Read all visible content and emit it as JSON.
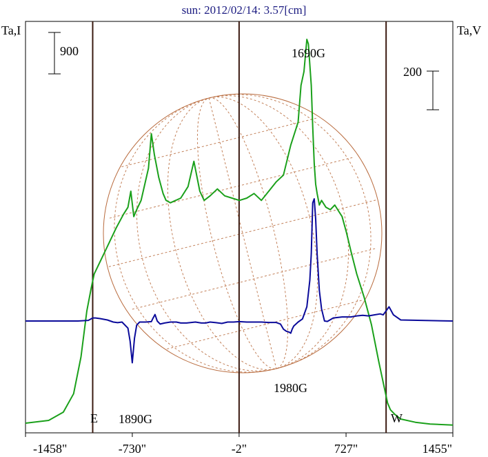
{
  "chart_data": {
    "type": "line",
    "title": "sun: 2012/02/14: 3.57[cm]",
    "left_axis_label": "Ta,I",
    "right_axis_label": "Ta,V",
    "x_unit": "arcsec",
    "xlim": [
      -1458,
      1455
    ],
    "x_tick_labels": [
      "-1458\"",
      "-730\"",
      "-2\"",
      "727\"",
      "1455\""
    ],
    "x_ticks": [
      -1458,
      -730,
      -2,
      727,
      1455
    ],
    "vertical_lines": [
      -1000,
      -2,
      1000
    ],
    "limb_labels": {
      "east": "E",
      "west": "W"
    },
    "scale_bars": [
      {
        "side": "left",
        "label": "900",
        "value": 900
      },
      {
        "side": "right",
        "label": "200",
        "value": 200
      }
    ],
    "annotations": [
      {
        "text": "1690G",
        "x": 510
      },
      {
        "text": "1890G",
        "x": -730
      },
      {
        "text": "1980G",
        "x": 380
      }
    ],
    "series": [
      {
        "name": "Ta,I",
        "color": "#1aa01a",
        "axis": "left",
        "x": [
          -1458,
          -1300,
          -1200,
          -1130,
          -1080,
          -1040,
          -1010,
          -990,
          -960,
          -900,
          -840,
          -790,
          -760,
          -740,
          -720,
          -700,
          -670,
          -620,
          -600,
          -580,
          -550,
          -520,
          -500,
          -470,
          -400,
          -350,
          -310,
          -270,
          -240,
          -200,
          -150,
          -100,
          -50,
          0,
          50,
          100,
          150,
          200,
          250,
          300,
          350,
          400,
          420,
          440,
          460,
          470,
          490,
          500,
          510,
          520,
          530,
          545,
          560,
          590,
          620,
          650,
          680,
          700,
          730,
          760,
          800,
          850,
          900,
          950,
          990,
          1010,
          1030,
          1060,
          1100,
          1200,
          1300,
          1455
        ],
        "y": [
          60,
          120,
          300,
          700,
          1500,
          2500,
          3000,
          3300,
          3500,
          3900,
          4300,
          4600,
          4750,
          5100,
          4550,
          4700,
          4900,
          5600,
          6350,
          5900,
          5400,
          5050,
          4900,
          4850,
          4950,
          5200,
          5750,
          5100,
          4900,
          5000,
          5150,
          5000,
          4950,
          4900,
          4950,
          5050,
          4900,
          5100,
          5300,
          5450,
          6100,
          6600,
          7400,
          7700,
          8400,
          8300,
          7400,
          6500,
          5700,
          5250,
          5050,
          4800,
          4900,
          4750,
          4700,
          4800,
          4650,
          4550,
          4200,
          3800,
          3300,
          2800,
          2200,
          1400,
          800,
          500,
          350,
          250,
          150,
          80,
          40,
          20
        ]
      },
      {
        "name": "Ta,V",
        "color": "#0a0a9a",
        "axis": "right",
        "x": [
          -1458,
          -1100,
          -1030,
          -1000,
          -980,
          -950,
          -900,
          -860,
          -830,
          -800,
          -760,
          -745,
          -730,
          -715,
          -700,
          -680,
          -640,
          -600,
          -590,
          -575,
          -560,
          -540,
          -510,
          -470,
          -430,
          -400,
          -360,
          -300,
          -260,
          -230,
          -200,
          -160,
          -120,
          -80,
          -40,
          0,
          50,
          100,
          150,
          200,
          250,
          280,
          300,
          320,
          340,
          350,
          360,
          370,
          400,
          430,
          460,
          480,
          490,
          500,
          510,
          520,
          530,
          545,
          560,
          580,
          600,
          640,
          700,
          760,
          800,
          840,
          880,
          920,
          960,
          980,
          1000,
          1020,
          1050,
          1100,
          1455
        ],
        "y": [
          0,
          0,
          3,
          15,
          15,
          12,
          5,
          -5,
          -8,
          -5,
          -35,
          -100,
          -205,
          -85,
          -20,
          -5,
          -5,
          -3,
          12,
          32,
          0,
          -15,
          -10,
          -5,
          -5,
          -10,
          -10,
          -5,
          -10,
          -10,
          -5,
          -8,
          -12,
          -5,
          -5,
          -3,
          -5,
          -5,
          -5,
          -7,
          -7,
          -15,
          -40,
          -50,
          -55,
          -60,
          -40,
          -25,
          -5,
          10,
          70,
          200,
          330,
          580,
          600,
          500,
          330,
          150,
          60,
          0,
          -2,
          15,
          20,
          20,
          25,
          28,
          25,
          30,
          35,
          30,
          50,
          70,
          30,
          5,
          0
        ]
      }
    ]
  }
}
